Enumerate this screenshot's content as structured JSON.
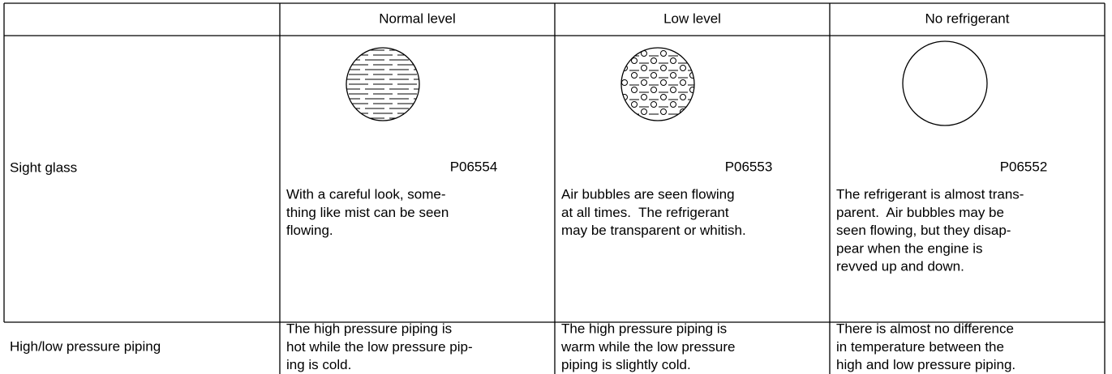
{
  "table": {
    "header": [
      "Normal level",
      "Low level",
      "No refrigerant"
    ],
    "rows": [
      {
        "label": "Sight glass",
        "cells": [
          {
            "figure": "P06554",
            "lines": [
              "With a careful look, some-",
              "thing like mist can be seen",
              "flowing."
            ]
          },
          {
            "figure": "P06553",
            "lines": [
              "Air bubbles are seen flowing",
              "at all times.  The refrigerant",
              "may be transparent or whitish."
            ]
          },
          {
            "figure": "P06552",
            "lines": [
              "The refrigerant is almost trans-",
              "parent.  Air bubbles may be",
              "seen flowing, but they disap-",
              "pear when the engine is",
              "revved up and down."
            ]
          }
        ]
      },
      {
        "label": "High/low pressure piping",
        "cells": [
          {
            "lines": [
              "The high pressure piping is",
              "hot while the low pressure pip-",
              "ing is cold."
            ]
          },
          {
            "lines": [
              "The high pressure piping is",
              "warm while the low pressure",
              "piping is slightly cold."
            ]
          },
          {
            "lines": [
              "There is almost no difference",
              "in temperature between the",
              "high and low pressure piping."
            ]
          }
        ]
      }
    ]
  }
}
